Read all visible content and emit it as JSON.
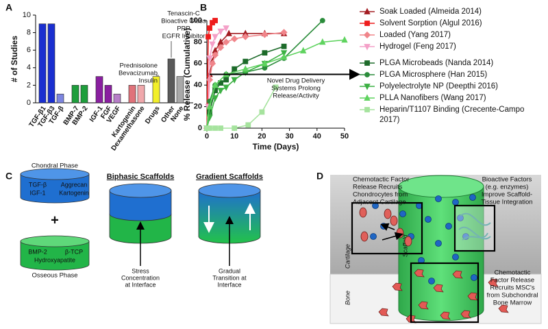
{
  "panel_labels": [
    "A",
    "B",
    "C",
    "D"
  ],
  "chart_data": [
    {
      "type": "bar",
      "ylabel": "# of Studies",
      "categories": [
        "TGF-β1",
        "TGF-β3",
        "TGF-β",
        "BMP-7",
        "BMP-2",
        "IGF-1",
        "FGF",
        "VEGF",
        "Kartogenin",
        "Dexamethasone",
        "Drugs",
        "Other",
        "None"
      ],
      "values": [
        9,
        9,
        1,
        2,
        2,
        3,
        2,
        1,
        2,
        2,
        3,
        5,
        3
      ],
      "colors": [
        "#1a2fd0",
        "#1a2fd0",
        "#7d86e0",
        "#1e9e3c",
        "#1e9e3c",
        "#8a1fa0",
        "#8a1fa0",
        "#b77ec8",
        "#e0727a",
        "#f0a8ac",
        "#f2ef2a",
        "#5a5a5a",
        "#a9a9a9"
      ],
      "ylim": [
        0,
        10
      ],
      "yticks": [
        0,
        2,
        4,
        6,
        8,
        10
      ],
      "annotations": [
        [
          "Prednisolone",
          "Bevacizumab",
          "Insulin"
        ],
        [
          "Tenascin-C",
          "Bioactive Glass",
          "PRP",
          "EGFR Inhibitor"
        ]
      ]
    },
    {
      "type": "line",
      "xlabel": "Time (Days)",
      "ylabel": "% Release (Cumulative)",
      "xlim": [
        0,
        50
      ],
      "xticks": [
        0,
        10,
        20,
        30,
        40,
        50
      ],
      "ylim": [
        0,
        100
      ],
      "yticks": [
        0,
        20,
        40,
        60,
        80,
        100
      ],
      "annotation": [
        "Novel Drug Delivery",
        "Systems Prolong",
        "Release/Activity"
      ],
      "series": [
        {
          "name": "Soak Loaded (Almeida 2014)",
          "color": "#a31d22",
          "marker": "triangle",
          "x": [
            0,
            1,
            2,
            3,
            5,
            8,
            14,
            21,
            28
          ],
          "values": [
            0,
            50,
            62,
            72,
            80,
            88,
            88,
            88,
            88
          ]
        },
        {
          "name": "Solvent Sorption (Algul 2016)",
          "color": "#ee1c1c",
          "marker": "square",
          "x": [
            0,
            0.5,
            1,
            2,
            3
          ],
          "values": [
            0,
            85,
            93,
            98,
            100
          ]
        },
        {
          "name": "Loaded (Yang 2017)",
          "color": "#f0858a",
          "marker": "diamond",
          "x": [
            0,
            1,
            2,
            3,
            5,
            7,
            10,
            14,
            21,
            28
          ],
          "values": [
            0,
            45,
            60,
            68,
            75,
            80,
            83,
            85,
            87,
            89
          ]
        },
        {
          "name": "Hydrogel (Feng 2017)",
          "color": "#f4a0c8",
          "marker": "triangle-down",
          "x": [
            0,
            0.5,
            1,
            2,
            3,
            5,
            7
          ],
          "values": [
            0,
            20,
            65,
            78,
            85,
            90,
            93
          ]
        },
        {
          "name": "PLGA Microbeads (Nanda 2014)",
          "color": "#1d6b2a",
          "marker": "square",
          "x": [
            0,
            1,
            3,
            5,
            7,
            10,
            14,
            21,
            28
          ],
          "values": [
            0,
            15,
            35,
            42,
            45,
            55,
            62,
            70,
            76
          ]
        },
        {
          "name": "PLGA Microsphere (Han 2015)",
          "color": "#2b8c3b",
          "marker": "circle",
          "x": [
            0,
            1,
            3,
            7,
            14,
            21,
            28,
            42
          ],
          "values": [
            0,
            25,
            40,
            50,
            52,
            56,
            65,
            100
          ]
        },
        {
          "name": "Polyelectrolyte NP (Deepthi 2016)",
          "color": "#3cb043",
          "marker": "triangle-down",
          "x": [
            0,
            1,
            3,
            5,
            7,
            10,
            14,
            21,
            28
          ],
          "values": [
            0,
            10,
            28,
            35,
            38,
            45,
            52,
            60,
            70
          ]
        },
        {
          "name": "PLLA Nanofibers (Wang 2017)",
          "color": "#5fd35f",
          "marker": "triangle",
          "x": [
            0,
            1,
            3,
            7,
            14,
            21,
            28,
            35,
            42,
            50
          ],
          "values": [
            0,
            20,
            40,
            50,
            55,
            60,
            66,
            72,
            80,
            82
          ]
        },
        {
          "name": "Heparin/T1107 Binding (Crecente-Campo 2017)",
          "color": "#a6e39e",
          "marker": "square",
          "x": [
            0,
            1,
            3,
            5,
            10,
            15,
            20,
            25
          ],
          "values": [
            0,
            0,
            0,
            0,
            0,
            3,
            15,
            38
          ]
        }
      ]
    }
  ],
  "panel_c": {
    "chondral_phase": {
      "title": "Chondral Phase",
      "factors": [
        "TGF-β",
        "Aggrecan",
        "IGF-1",
        "Kartogenin"
      ]
    },
    "plus": "+",
    "osseous_phase": {
      "title": "Osseous Phase",
      "factors": [
        "BMP-2",
        "β-TCP",
        "Hydroxyapatite"
      ]
    },
    "biphasic": {
      "title": "Biphasic Scaffolds",
      "note": [
        "Stress",
        "Concentration",
        "at Interface"
      ]
    },
    "gradient": {
      "title": "Gradient Scaffolds",
      "note": [
        "Gradual",
        "Transition at",
        "Interface"
      ]
    }
  },
  "panel_d": {
    "callouts": [
      [
        "Chemotactic Factor",
        "Release Recruits",
        "Chondrocytes from",
        "Adjacent Cartilage"
      ],
      [
        "Bioactive Factors",
        "(e.g. enzymes)",
        "Improve Scaffold-",
        "Tissue Integration"
      ],
      [
        "Chemotactic",
        "Factor Release",
        "Recruits MSC's",
        "from Subchondral",
        "Bone Marrow"
      ]
    ],
    "labels": {
      "cartilage": "Cartilage",
      "scaffold": "Scaffold",
      "bone": "Bone"
    }
  }
}
